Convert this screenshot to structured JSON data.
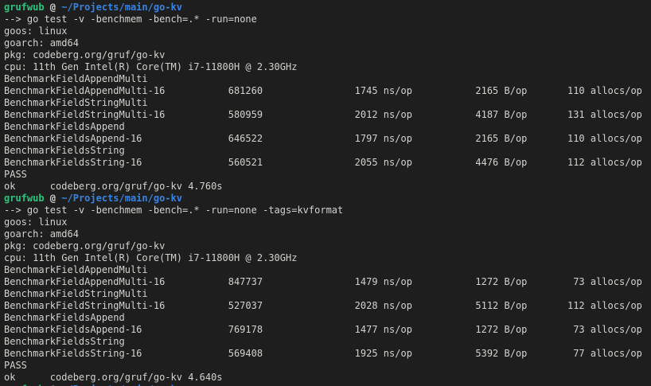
{
  "terminal": {
    "colors": {
      "background": "#1e1e1e",
      "foreground": "#d3d2cd",
      "prompt_user_green": "#2ec27e",
      "prompt_path_blue": "#3584e4"
    },
    "prompt": {
      "user": "grufwub",
      "separator": " @ ",
      "path": "~/Projects/main/go-kv"
    },
    "lines": [
      {
        "type": "prompt"
      },
      {
        "type": "command",
        "text": "--> go test -v -benchmem -bench=.* -run=none"
      },
      {
        "type": "text",
        "text": "goos: linux"
      },
      {
        "type": "text",
        "text": "goarch: amd64"
      },
      {
        "type": "text",
        "text": "pkg: codeberg.org/gruf/go-kv"
      },
      {
        "type": "text",
        "text": "cpu: 11th Gen Intel(R) Core(TM) i7-11800H @ 2.30GHz"
      },
      {
        "type": "text",
        "text": "BenchmarkFieldAppendMulti"
      },
      {
        "type": "bench",
        "name": "BenchmarkFieldAppendMulti-16",
        "iterations": "681260",
        "ns_per_op": "1745 ns/op",
        "bytes_per_op": "2165 B/op",
        "allocs_per_op": "110 allocs/op"
      },
      {
        "type": "text",
        "text": "BenchmarkFieldStringMulti"
      },
      {
        "type": "bench",
        "name": "BenchmarkFieldStringMulti-16",
        "iterations": "580959",
        "ns_per_op": "2012 ns/op",
        "bytes_per_op": "4187 B/op",
        "allocs_per_op": "131 allocs/op"
      },
      {
        "type": "text",
        "text": "BenchmarkFieldsAppend"
      },
      {
        "type": "bench",
        "name": "BenchmarkFieldsAppend-16",
        "iterations": "646522",
        "ns_per_op": "1797 ns/op",
        "bytes_per_op": "2165 B/op",
        "allocs_per_op": "110 allocs/op"
      },
      {
        "type": "text",
        "text": "BenchmarkFieldsString"
      },
      {
        "type": "bench",
        "name": "BenchmarkFieldsString-16",
        "iterations": "560521",
        "ns_per_op": "2055 ns/op",
        "bytes_per_op": "4476 B/op",
        "allocs_per_op": "112 allocs/op"
      },
      {
        "type": "text",
        "text": "PASS"
      },
      {
        "type": "text",
        "text": "ok      codeberg.org/gruf/go-kv 4.760s"
      },
      {
        "type": "prompt"
      },
      {
        "type": "command",
        "text": "--> go test -v -benchmem -bench=.* -run=none -tags=kvformat"
      },
      {
        "type": "text",
        "text": "goos: linux"
      },
      {
        "type": "text",
        "text": "goarch: amd64"
      },
      {
        "type": "text",
        "text": "pkg: codeberg.org/gruf/go-kv"
      },
      {
        "type": "text",
        "text": "cpu: 11th Gen Intel(R) Core(TM) i7-11800H @ 2.30GHz"
      },
      {
        "type": "text",
        "text": "BenchmarkFieldAppendMulti"
      },
      {
        "type": "bench",
        "name": "BenchmarkFieldAppendMulti-16",
        "iterations": "847737",
        "ns_per_op": "1479 ns/op",
        "bytes_per_op": "1272 B/op",
        "allocs_per_op": "73 allocs/op"
      },
      {
        "type": "text",
        "text": "BenchmarkFieldStringMulti"
      },
      {
        "type": "bench",
        "name": "BenchmarkFieldStringMulti-16",
        "iterations": "527037",
        "ns_per_op": "2028 ns/op",
        "bytes_per_op": "5112 B/op",
        "allocs_per_op": "112 allocs/op"
      },
      {
        "type": "text",
        "text": "BenchmarkFieldsAppend"
      },
      {
        "type": "bench",
        "name": "BenchmarkFieldsAppend-16",
        "iterations": "769178",
        "ns_per_op": "1477 ns/op",
        "bytes_per_op": "1272 B/op",
        "allocs_per_op": "73 allocs/op"
      },
      {
        "type": "text",
        "text": "BenchmarkFieldsString"
      },
      {
        "type": "bench",
        "name": "BenchmarkFieldsString-16",
        "iterations": "569408",
        "ns_per_op": "1925 ns/op",
        "bytes_per_op": "5392 B/op",
        "allocs_per_op": "77 allocs/op"
      },
      {
        "type": "text",
        "text": "PASS"
      },
      {
        "type": "text",
        "text": "ok      codeberg.org/gruf/go-kv 4.640s"
      },
      {
        "type": "prompt"
      }
    ]
  }
}
